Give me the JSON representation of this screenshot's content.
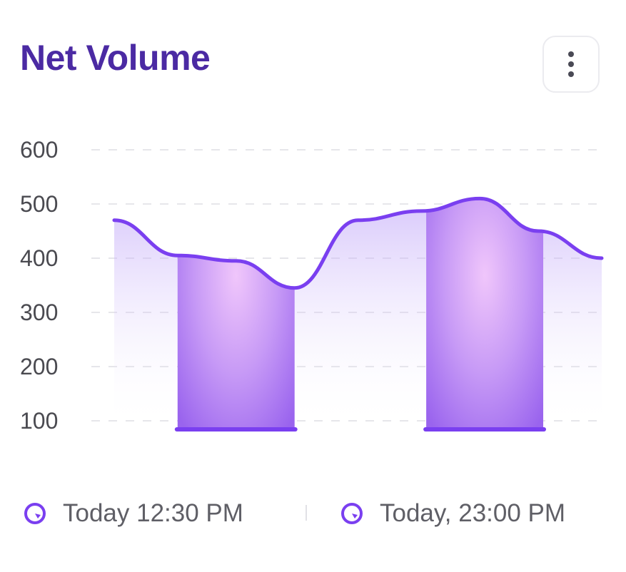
{
  "header": {
    "title": "Net Volume"
  },
  "menu": {
    "icon": "more-vertical-icon"
  },
  "chart_data": {
    "type": "line",
    "title": "Net Volume",
    "xlabel": "",
    "ylabel": "",
    "ylim": [
      100,
      600
    ],
    "y_ticks": [
      "600",
      "500",
      "400",
      "300",
      "200",
      "100"
    ],
    "grid": true,
    "line_color": "#7a3ff0",
    "series": [
      {
        "x": [
          0,
          0.13,
          0.25,
          0.37,
          0.5,
          0.63,
          0.75,
          0.87,
          1.0
        ],
        "values": [
          470,
          405,
          395,
          345,
          470,
          487,
          510,
          450,
          400
        ]
      }
    ],
    "highlight_bars": [
      {
        "x_start": 0.13,
        "x_end": 0.37,
        "values_top": 400
      },
      {
        "x_start": 0.64,
        "x_end": 0.88,
        "values_top": 487
      }
    ]
  },
  "footer": {
    "items": [
      {
        "label": "Today 12:30 PM",
        "icon": "clock-icon"
      },
      {
        "label": "Today, 23:00 PM",
        "icon": "clock-icon"
      }
    ]
  },
  "colors": {
    "accent": "#7a3ff0",
    "title": "#4b2aa3",
    "text": "#5f5f66",
    "tick": "#4a4a50",
    "grid": "#e6e6ea"
  }
}
